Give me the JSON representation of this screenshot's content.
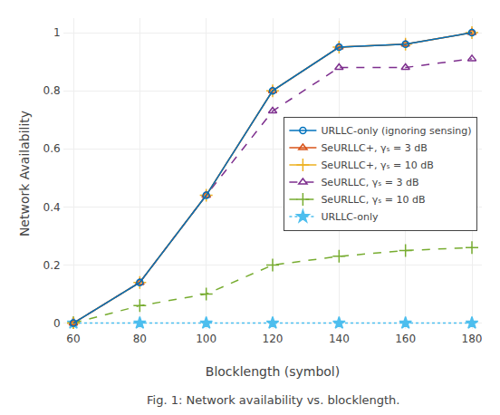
{
  "chart_data": {
    "type": "line",
    "x": [
      60,
      80,
      100,
      120,
      140,
      160,
      180
    ],
    "series": [
      {
        "name": "URLLC-only (ignoring sensing)",
        "color": "#0072BD",
        "marker": "circle",
        "line_style": "solid",
        "values": [
          0.0,
          0.14,
          0.44,
          0.8,
          0.95,
          0.96,
          1.0
        ]
      },
      {
        "name": "SeURLLC+, γₛ = 3 dB",
        "color": "#D95319",
        "marker": "triangle-up",
        "line_style": "solid",
        "values": [
          0.0,
          0.14,
          0.44,
          0.8,
          0.95,
          0.96,
          1.0
        ]
      },
      {
        "name": "SeURLLC+, γₛ = 10 dB",
        "color": "#EDB120",
        "marker": "plus",
        "line_style": "solid",
        "values": [
          0.0,
          0.14,
          0.44,
          0.8,
          0.95,
          0.96,
          1.0
        ]
      },
      {
        "name": "SeURLLC, γₛ = 3 dB",
        "color": "#7E2F8E",
        "marker": "triangle-up",
        "line_style": "dash",
        "values": [
          0.0,
          0.14,
          0.44,
          0.73,
          0.88,
          0.88,
          0.91
        ]
      },
      {
        "name": "SeURLLC, γₛ = 10 dB",
        "color": "#77AC30",
        "marker": "plus",
        "line_style": "dash",
        "values": [
          0.0,
          0.06,
          0.1,
          0.2,
          0.23,
          0.25,
          0.26
        ]
      },
      {
        "name": "URLLC-only",
        "color": "#4DBEEE",
        "marker": "star",
        "line_style": "dot",
        "values": [
          0.0,
          0.0,
          0.0,
          0.0,
          0.0,
          0.0,
          0.0
        ]
      }
    ],
    "xlabel": "Blocklength (symbol)",
    "ylabel": "Network Availability",
    "xlim": [
      57,
      183
    ],
    "ylim": [
      -0.02,
      1.05
    ],
    "xticks": [
      60,
      80,
      100,
      120,
      140,
      160,
      180
    ],
    "yticks": [
      0.0,
      0.2,
      0.4,
      0.6,
      0.8,
      1.0
    ],
    "annotations": [
      "Fig. 1: Network availability vs. blocklength."
    ],
    "grid": true,
    "legend": "center right"
  }
}
